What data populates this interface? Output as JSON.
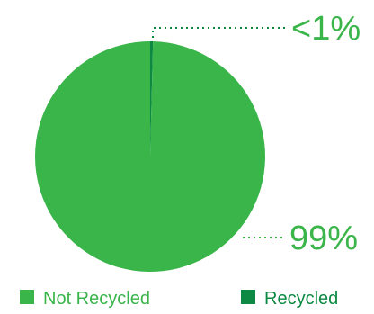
{
  "chart_data": {
    "type": "pie",
    "title": "",
    "slices": [
      {
        "label": "Not Recycled",
        "value": 99,
        "display": "99%",
        "color": "#39b54a"
      },
      {
        "label": "Recycled",
        "value": 1,
        "display": "<1%",
        "color": "#0c8a43"
      }
    ],
    "legend": {
      "placement": "bottom",
      "items": [
        "Not Recycled",
        "Recycled"
      ]
    },
    "callout_color": "#39b54a",
    "leader_line_color": "#0c8a43"
  }
}
